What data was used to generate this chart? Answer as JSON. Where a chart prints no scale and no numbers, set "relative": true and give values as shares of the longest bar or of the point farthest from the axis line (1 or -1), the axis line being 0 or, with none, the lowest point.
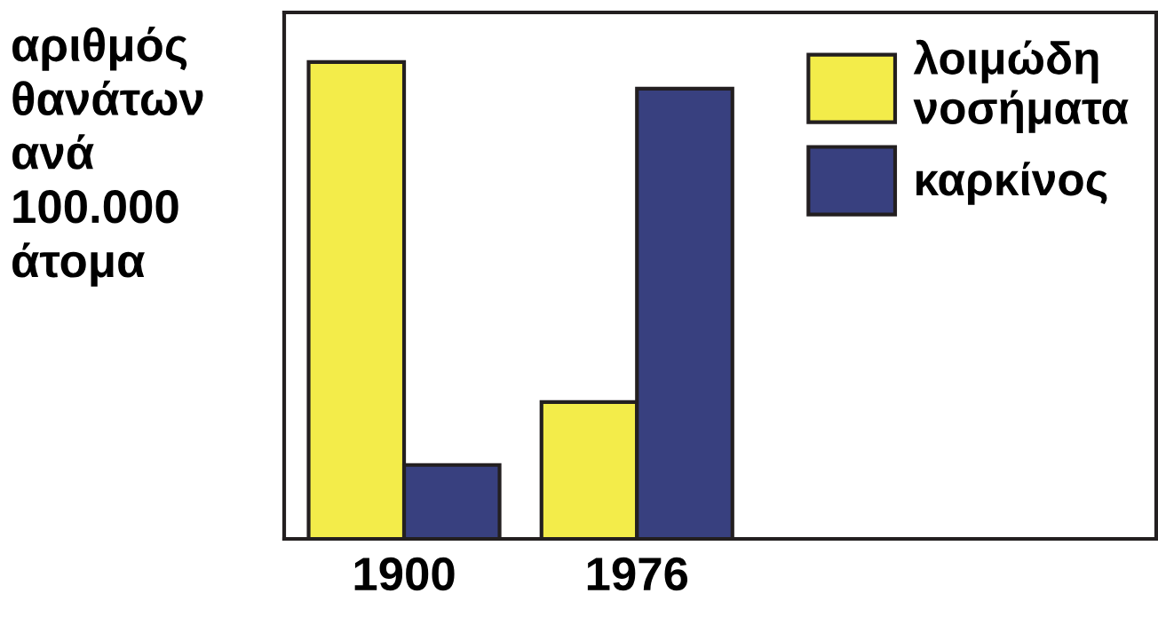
{
  "chart_data": {
    "type": "bar",
    "relative": true,
    "ylabel": "αριθμός\nθανάτων\nανά\n100.000\nάτομα",
    "categories": [
      "1900",
      "1976"
    ],
    "series": [
      {
        "name": "λοιμώδη\nνοσήματα",
        "color": "#f3ec4a",
        "values": [
          1,
          0.287
        ]
      },
      {
        "name": "καρκίνος",
        "color": "#38407f",
        "values": [
          0.155,
          0.944
        ]
      }
    ],
    "legend": "top right",
    "grid": false
  }
}
